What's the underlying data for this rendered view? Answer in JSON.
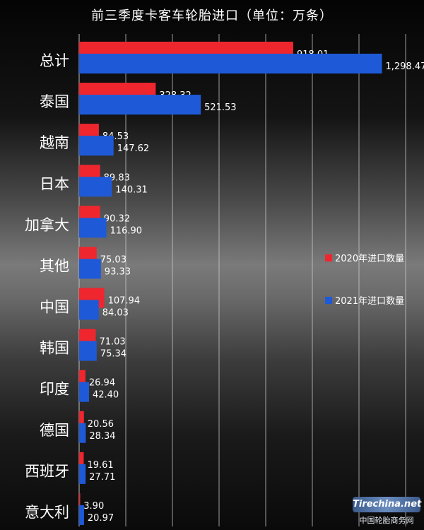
{
  "chart_data": {
    "type": "bar",
    "orientation": "horizontal",
    "title": "前三季度卡客车轮胎进口（单位：万条）",
    "categories": [
      "总计",
      "泰国",
      "越南",
      "日本",
      "加拿大",
      "其他",
      "中国",
      "韩国",
      "印度",
      "德国",
      "西班牙",
      "意大利"
    ],
    "series": [
      {
        "name": "2020年进口数量",
        "color": "#f0262e",
        "values": [
          918.01,
          328.32,
          84.53,
          89.83,
          90.32,
          75.03,
          107.94,
          71.03,
          26.94,
          20.56,
          19.61,
          3.9
        ],
        "labels": [
          "918.01",
          "328.32",
          "84.53",
          "89.83",
          "90.32",
          "75.03",
          "107.94",
          "71.03",
          "26.94",
          "20.56",
          "19.61",
          "3.90"
        ]
      },
      {
        "name": "2021年进口数量",
        "color": "#1e5ad8",
        "values": [
          1298.47,
          521.53,
          147.62,
          140.31,
          116.9,
          93.33,
          84.03,
          75.34,
          42.4,
          28.34,
          27.71,
          20.97
        ],
        "labels": [
          "1,298.47",
          "521.53",
          "147.62",
          "140.31",
          "116.90",
          "93.33",
          "84.03",
          "75.34",
          "42.40",
          "28.34",
          "27.71",
          "20.97"
        ]
      }
    ],
    "xlim": [
      0,
      1400
    ],
    "grid": true,
    "legend_position": "right"
  },
  "watermark": {
    "logo": "Tirechina.net",
    "text": "中国轮胎商务网"
  }
}
